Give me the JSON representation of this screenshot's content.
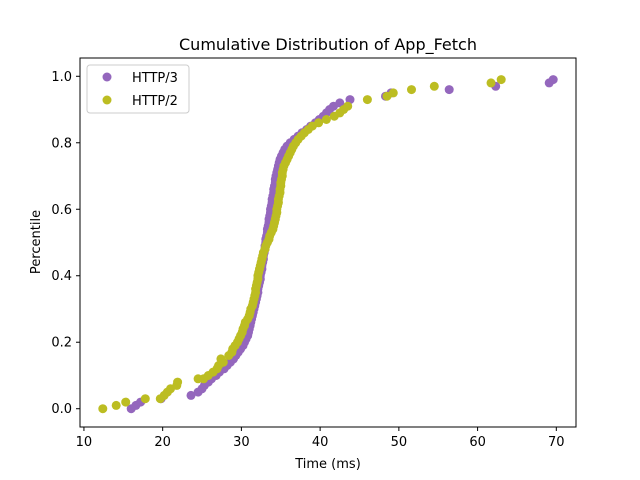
{
  "chart_data": {
    "type": "scatter",
    "title": "Cumulative Distribution of App_Fetch",
    "xlabel": "Time (ms)",
    "ylabel": "Percentile",
    "xlim": [
      9.5,
      72.5
    ],
    "ylim": [
      -0.055,
      1.055
    ],
    "xticks": [
      10,
      20,
      30,
      40,
      50,
      60,
      70
    ],
    "yticks": [
      0.0,
      0.2,
      0.4,
      0.6,
      0.8,
      1.0
    ],
    "xtick_labels": [
      "10",
      "20",
      "30",
      "40",
      "50",
      "60",
      "70"
    ],
    "ytick_labels": [
      "0.0",
      "0.2",
      "0.4",
      "0.6",
      "0.8",
      "1.0"
    ],
    "legend_position": "top-left",
    "grid": false,
    "series": [
      {
        "name": "HTTP/3",
        "color": "#9467bd",
        "points": [
          [
            16.0,
            0.0
          ],
          [
            16.6,
            0.01
          ],
          [
            17.2,
            0.02
          ],
          [
            19.8,
            0.03
          ],
          [
            23.6,
            0.04
          ],
          [
            24.5,
            0.05
          ],
          [
            25.0,
            0.06
          ],
          [
            25.3,
            0.07
          ],
          [
            25.8,
            0.08
          ],
          [
            26.2,
            0.09
          ],
          [
            26.8,
            0.1
          ],
          [
            27.2,
            0.11
          ],
          [
            27.8,
            0.12
          ],
          [
            28.2,
            0.13
          ],
          [
            28.6,
            0.14
          ],
          [
            29.0,
            0.15
          ],
          [
            29.3,
            0.16
          ],
          [
            29.6,
            0.17
          ],
          [
            29.9,
            0.18
          ],
          [
            30.2,
            0.19
          ],
          [
            30.4,
            0.2
          ],
          [
            30.6,
            0.21
          ],
          [
            30.8,
            0.22
          ],
          [
            30.9,
            0.23
          ],
          [
            31.0,
            0.24
          ],
          [
            31.1,
            0.25
          ],
          [
            31.2,
            0.26
          ],
          [
            31.3,
            0.27
          ],
          [
            31.4,
            0.28
          ],
          [
            31.5,
            0.29
          ],
          [
            31.6,
            0.3
          ],
          [
            31.7,
            0.31
          ],
          [
            31.8,
            0.32
          ],
          [
            31.9,
            0.33
          ],
          [
            32.0,
            0.34
          ],
          [
            32.1,
            0.35
          ],
          [
            32.1,
            0.36
          ],
          [
            32.2,
            0.37
          ],
          [
            32.3,
            0.38
          ],
          [
            32.4,
            0.39
          ],
          [
            32.4,
            0.4
          ],
          [
            32.5,
            0.41
          ],
          [
            32.6,
            0.42
          ],
          [
            32.6,
            0.43
          ],
          [
            32.7,
            0.44
          ],
          [
            32.8,
            0.45
          ],
          [
            32.8,
            0.46
          ],
          [
            32.9,
            0.47
          ],
          [
            33.0,
            0.48
          ],
          [
            33.0,
            0.49
          ],
          [
            33.1,
            0.5
          ],
          [
            33.1,
            0.51
          ],
          [
            33.2,
            0.52
          ],
          [
            33.3,
            0.53
          ],
          [
            33.3,
            0.54
          ],
          [
            33.4,
            0.55
          ],
          [
            33.5,
            0.56
          ],
          [
            33.5,
            0.57
          ],
          [
            33.6,
            0.58
          ],
          [
            33.7,
            0.59
          ],
          [
            33.7,
            0.6
          ],
          [
            33.8,
            0.61
          ],
          [
            33.9,
            0.62
          ],
          [
            33.9,
            0.63
          ],
          [
            34.0,
            0.64
          ],
          [
            34.1,
            0.65
          ],
          [
            34.1,
            0.66
          ],
          [
            34.2,
            0.67
          ],
          [
            34.3,
            0.68
          ],
          [
            34.3,
            0.69
          ],
          [
            34.4,
            0.7
          ],
          [
            34.5,
            0.71
          ],
          [
            34.6,
            0.72
          ],
          [
            34.7,
            0.73
          ],
          [
            34.8,
            0.74
          ],
          [
            34.9,
            0.75
          ],
          [
            35.1,
            0.76
          ],
          [
            35.3,
            0.77
          ],
          [
            35.5,
            0.78
          ],
          [
            35.8,
            0.79
          ],
          [
            36.2,
            0.8
          ],
          [
            36.7,
            0.81
          ],
          [
            37.2,
            0.82
          ],
          [
            37.7,
            0.83
          ],
          [
            38.3,
            0.84
          ],
          [
            38.8,
            0.85
          ],
          [
            39.4,
            0.86
          ],
          [
            39.9,
            0.87
          ],
          [
            40.4,
            0.88
          ],
          [
            40.8,
            0.89
          ],
          [
            41.2,
            0.9
          ],
          [
            41.7,
            0.91
          ],
          [
            42.5,
            0.92
          ],
          [
            43.8,
            0.93
          ],
          [
            48.3,
            0.94
          ],
          [
            49.0,
            0.95
          ],
          [
            56.4,
            0.96
          ],
          [
            62.3,
            0.97
          ],
          [
            69.1,
            0.98
          ],
          [
            69.6,
            0.99
          ]
        ]
      },
      {
        "name": "HTTP/2",
        "color": "#bcbd22",
        "points": [
          [
            12.4,
            0.0
          ],
          [
            14.1,
            0.01
          ],
          [
            15.3,
            0.02
          ],
          [
            17.8,
            0.03
          ],
          [
            19.7,
            0.03
          ],
          [
            20.2,
            0.04
          ],
          [
            20.6,
            0.05
          ],
          [
            21.0,
            0.06
          ],
          [
            21.8,
            0.07
          ],
          [
            21.9,
            0.08
          ],
          [
            24.5,
            0.09
          ],
          [
            25.2,
            0.09
          ],
          [
            25.8,
            0.1
          ],
          [
            26.4,
            0.11
          ],
          [
            26.9,
            0.12
          ],
          [
            27.1,
            0.13
          ],
          [
            27.7,
            0.14
          ],
          [
            27.4,
            0.15
          ],
          [
            28.4,
            0.16
          ],
          [
            28.8,
            0.17
          ],
          [
            28.9,
            0.18
          ],
          [
            29.2,
            0.19
          ],
          [
            29.5,
            0.2
          ],
          [
            29.7,
            0.21
          ],
          [
            29.9,
            0.22
          ],
          [
            30.1,
            0.23
          ],
          [
            30.2,
            0.24
          ],
          [
            30.4,
            0.25
          ],
          [
            30.5,
            0.26
          ],
          [
            30.8,
            0.27
          ],
          [
            31.0,
            0.28
          ],
          [
            31.1,
            0.29
          ],
          [
            31.2,
            0.3
          ],
          [
            31.4,
            0.31
          ],
          [
            31.5,
            0.32
          ],
          [
            31.6,
            0.33
          ],
          [
            31.7,
            0.34
          ],
          [
            31.8,
            0.35
          ],
          [
            31.8,
            0.36
          ],
          [
            31.9,
            0.37
          ],
          [
            32.0,
            0.38
          ],
          [
            32.1,
            0.39
          ],
          [
            32.1,
            0.4
          ],
          [
            32.2,
            0.41
          ],
          [
            32.3,
            0.42
          ],
          [
            32.4,
            0.43
          ],
          [
            32.5,
            0.44
          ],
          [
            32.6,
            0.45
          ],
          [
            32.7,
            0.46
          ],
          [
            32.8,
            0.47
          ],
          [
            33.0,
            0.48
          ],
          [
            33.1,
            0.49
          ],
          [
            33.3,
            0.5
          ],
          [
            33.5,
            0.51
          ],
          [
            33.6,
            0.52
          ],
          [
            33.8,
            0.53
          ],
          [
            34.0,
            0.54
          ],
          [
            34.1,
            0.55
          ],
          [
            34.2,
            0.56
          ],
          [
            34.3,
            0.57
          ],
          [
            34.4,
            0.58
          ],
          [
            34.5,
            0.59
          ],
          [
            34.5,
            0.6
          ],
          [
            34.6,
            0.61
          ],
          [
            34.7,
            0.62
          ],
          [
            34.7,
            0.63
          ],
          [
            34.8,
            0.64
          ],
          [
            34.9,
            0.65
          ],
          [
            34.9,
            0.66
          ],
          [
            35.0,
            0.67
          ],
          [
            35.0,
            0.68
          ],
          [
            35.1,
            0.69
          ],
          [
            35.2,
            0.7
          ],
          [
            35.2,
            0.71
          ],
          [
            35.3,
            0.72
          ],
          [
            35.4,
            0.73
          ],
          [
            35.6,
            0.74
          ],
          [
            35.8,
            0.75
          ],
          [
            36.0,
            0.76
          ],
          [
            36.2,
            0.77
          ],
          [
            36.4,
            0.78
          ],
          [
            36.6,
            0.79
          ],
          [
            36.9,
            0.8
          ],
          [
            37.2,
            0.81
          ],
          [
            37.6,
            0.82
          ],
          [
            38.0,
            0.83
          ],
          [
            38.5,
            0.84
          ],
          [
            39.0,
            0.85
          ],
          [
            39.8,
            0.86
          ],
          [
            40.8,
            0.87
          ],
          [
            41.8,
            0.88
          ],
          [
            42.5,
            0.89
          ],
          [
            43.0,
            0.9
          ],
          [
            43.5,
            0.91
          ],
          [
            46.0,
            0.93
          ],
          [
            48.5,
            0.94
          ],
          [
            49.3,
            0.95
          ],
          [
            51.6,
            0.96
          ],
          [
            54.5,
            0.97
          ],
          [
            61.7,
            0.98
          ],
          [
            63.0,
            0.99
          ]
        ]
      }
    ]
  }
}
